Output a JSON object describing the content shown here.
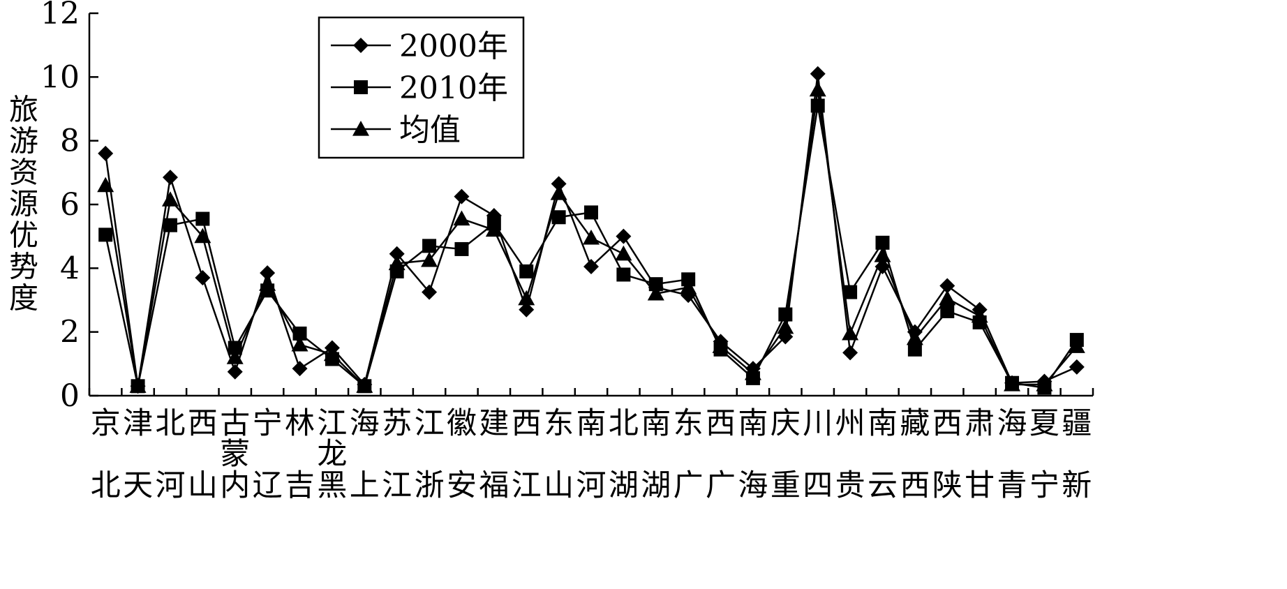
{
  "chart_data": {
    "type": "line",
    "ylabel": "旅游资源优势度",
    "ylim": [
      0,
      12
    ],
    "yticks": [
      0,
      2,
      4,
      6,
      8,
      10,
      12
    ],
    "grid": false,
    "legend_position": "top-left-center",
    "categories": [
      {
        "top": "京",
        "bottom": "北"
      },
      {
        "top": "津",
        "bottom": "天"
      },
      {
        "top": "北",
        "bottom": "河"
      },
      {
        "top": "西",
        "bottom": "山"
      },
      {
        "top": "古",
        "mid": "蒙",
        "bottom": "内"
      },
      {
        "top": "宁",
        "bottom": "辽"
      },
      {
        "top": "林",
        "bottom": "吉"
      },
      {
        "top": "江",
        "mid": "龙",
        "bottom": "黑"
      },
      {
        "top": "海",
        "bottom": "上"
      },
      {
        "top": "苏",
        "bottom": "江"
      },
      {
        "top": "江",
        "bottom": "浙"
      },
      {
        "top": "徽",
        "bottom": "安"
      },
      {
        "top": "建",
        "bottom": "福"
      },
      {
        "top": "西",
        "bottom": "江"
      },
      {
        "top": "东",
        "bottom": "山"
      },
      {
        "top": "南",
        "bottom": "河"
      },
      {
        "top": "北",
        "bottom": "湖"
      },
      {
        "top": "南",
        "bottom": "湖"
      },
      {
        "top": "东",
        "bottom": "广"
      },
      {
        "top": "西",
        "bottom": "广"
      },
      {
        "top": "南",
        "bottom": "海"
      },
      {
        "top": "庆",
        "bottom": "重"
      },
      {
        "top": "川",
        "bottom": "四"
      },
      {
        "top": "州",
        "bottom": "贵"
      },
      {
        "top": "南",
        "bottom": "云"
      },
      {
        "top": "藏",
        "bottom": "西"
      },
      {
        "top": "西",
        "bottom": "陕"
      },
      {
        "top": "肃",
        "bottom": "甘"
      },
      {
        "top": "海",
        "bottom": "青"
      },
      {
        "top": "夏",
        "bottom": "宁"
      },
      {
        "top": "疆",
        "bottom": "新"
      }
    ],
    "series": [
      {
        "name": "2000年",
        "marker": "diamond",
        "values": [
          7.6,
          0.3,
          6.85,
          3.7,
          0.75,
          3.85,
          0.85,
          1.5,
          0.35,
          4.45,
          3.25,
          6.25,
          5.65,
          2.7,
          6.65,
          4.05,
          5.0,
          3.4,
          3.15,
          1.7,
          0.85,
          1.85,
          10.1,
          1.35,
          4.05,
          2.0,
          3.45,
          2.7,
          0.4,
          0.45,
          0.9
        ]
      },
      {
        "name": "2010年",
        "marker": "square",
        "values": [
          5.05,
          0.3,
          5.35,
          5.55,
          1.5,
          3.3,
          1.95,
          1.15,
          0.3,
          3.9,
          4.7,
          4.6,
          5.4,
          3.9,
          5.6,
          5.75,
          3.8,
          3.5,
          3.65,
          1.45,
          0.55,
          2.55,
          9.1,
          3.25,
          4.8,
          1.45,
          2.65,
          2.3,
          0.4,
          0.25,
          1.75
        ]
      },
      {
        "name": "均值",
        "marker": "triangle",
        "values": [
          6.6,
          0.3,
          6.15,
          5.0,
          1.2,
          3.5,
          1.6,
          1.3,
          0.3,
          4.15,
          4.25,
          5.55,
          5.2,
          3.05,
          6.35,
          4.95,
          4.45,
          3.2,
          3.4,
          1.55,
          0.7,
          2.15,
          9.6,
          1.95,
          4.4,
          1.8,
          3.05,
          2.5,
          0.35,
          0.35,
          1.55
        ]
      }
    ]
  }
}
